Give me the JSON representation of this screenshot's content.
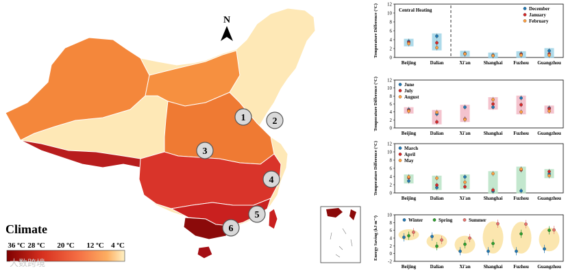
{
  "map": {
    "north_label": "N",
    "legend_title": "Climate",
    "legend_ticks": [
      "36 ºC",
      "28 ºC",
      "20 ºC",
      "12 ºC",
      "4 ºC"
    ],
    "city_markers": [
      "1",
      "2",
      "3",
      "4",
      "5",
      "6"
    ],
    "colors": {
      "hot": "#8b0000",
      "warm_red": "#d73027",
      "orange": "#f46d43",
      "light_orange": "#fdae61",
      "pale": "#fee8b6"
    }
  },
  "watermark": "大数跨境",
  "chart_data": [
    {
      "type": "scatter",
      "title": "",
      "ylabel": "Temperature Difference (°C)",
      "ylim": [
        0,
        12
      ],
      "yticks": [
        0,
        2,
        4,
        6,
        8,
        10,
        12
      ],
      "categories": [
        "Beijing",
        "Dalian",
        "Xi'an",
        "Shanghai",
        "Fuzhou",
        "Guangzhou"
      ],
      "annotation": "Central Heating",
      "bar_color": "#9fd3e6",
      "series": [
        {
          "name": "December",
          "color": "#1f77b4",
          "values": [
            3.6,
            4.8,
            0.9,
            0.5,
            0.8,
            1.5
          ]
        },
        {
          "name": "January",
          "color": "#d62728",
          "values": [
            3.4,
            3.3,
            0.8,
            0.4,
            0.7,
            0.8
          ]
        },
        {
          "name": "February",
          "color": "#ff9f40",
          "values": [
            3.1,
            2.2,
            0.8,
            0.4,
            0.5,
            0.5
          ]
        }
      ]
    },
    {
      "type": "scatter",
      "title": "",
      "ylabel": "Temperature Difference (°C)",
      "ylim": [
        0,
        12
      ],
      "yticks": [
        0,
        2,
        4,
        6,
        8,
        10,
        12
      ],
      "categories": [
        "Beijing",
        "Dalian",
        "Xi'an",
        "Shanghai",
        "Fuzhou",
        "Guangzhou"
      ],
      "bar_color": "#f2b8c6",
      "series": [
        {
          "name": "June",
          "color": "#1f77b4",
          "values": [
            4.6,
            3.5,
            5.2,
            5.2,
            7.5,
            5.0
          ]
        },
        {
          "name": "July",
          "color": "#d62728",
          "values": [
            4.4,
            1.5,
            2.2,
            6.0,
            5.8,
            4.8
          ]
        },
        {
          "name": "August",
          "color": "#ff9f40",
          "values": [
            4.2,
            3.9,
            2.1,
            7.1,
            4.0,
            4.2
          ]
        }
      ]
    },
    {
      "type": "scatter",
      "title": "",
      "ylabel": "Temperature Difference (°C)",
      "ylim": [
        0,
        12
      ],
      "yticks": [
        0,
        2,
        4,
        6,
        8,
        10,
        12
      ],
      "categories": [
        "Beijing",
        "Dalian",
        "Xi'an",
        "Shanghai",
        "Fuzhou",
        "Guangzhou"
      ],
      "bar_color": "#b9e3c6",
      "series": [
        {
          "name": "March",
          "color": "#1f77b4",
          "values": [
            2.9,
            1.3,
            3.9,
            0.4,
            0.5,
            4.6
          ]
        },
        {
          "name": "April",
          "color": "#d62728",
          "values": [
            3.7,
            1.9,
            1.5,
            0.7,
            5.6,
            5.2
          ]
        },
        {
          "name": "May",
          "color": "#ff9f40",
          "values": [
            3.9,
            3.6,
            2.6,
            4.7,
            5.8,
            4.2
          ]
        }
      ]
    },
    {
      "type": "scatter",
      "title": "",
      "ylabel": "Energy Saving (kJ m⁻²)",
      "ylim": [
        -2,
        10
      ],
      "yticks": [
        -2,
        0,
        2,
        4,
        6,
        8,
        10
      ],
      "categories": [
        "Beijing",
        "Dalian",
        "Xi'an",
        "Shanghai",
        "Fuzhou",
        "Guangzhou"
      ],
      "bar_color": "#fbe3a6",
      "series": [
        {
          "name": "Winter",
          "color": "#1f77b4",
          "values": [
            4.2,
            4.4,
            0.6,
            0.6,
            0.6,
            1.2
          ]
        },
        {
          "name": "Spring",
          "color": "#2ca02c",
          "values": [
            4.6,
            1.9,
            2.4,
            2.6,
            5.1,
            6.0
          ]
        },
        {
          "name": "Summer",
          "color": "#e8706a",
          "values": [
            5.5,
            3.5,
            4.0,
            7.7,
            7.6,
            6.1
          ]
        }
      ]
    }
  ]
}
